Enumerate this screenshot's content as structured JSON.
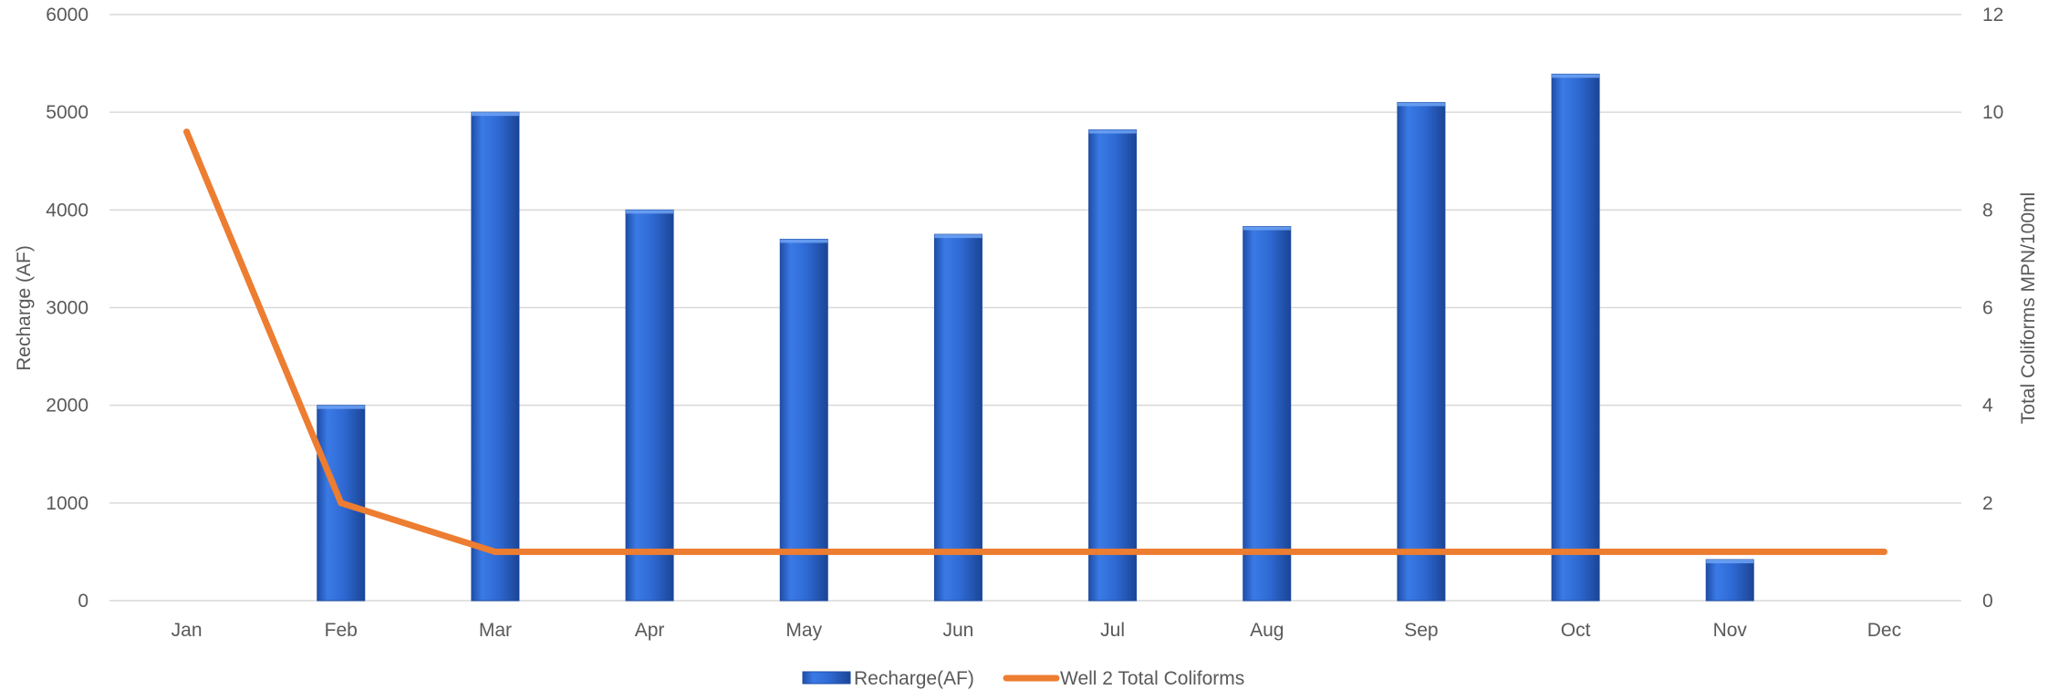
{
  "chart_data": {
    "type": "bar",
    "categories": [
      "Jan",
      "Feb",
      "Mar",
      "Apr",
      "May",
      "Jun",
      "Jul",
      "Aug",
      "Sep",
      "Oct",
      "Nov",
      "Dec"
    ],
    "series": [
      {
        "name": "Recharge(AF)",
        "kind": "bar",
        "axis": "left",
        "color": "#2e6bd6",
        "values": [
          0,
          2000,
          5000,
          4000,
          3700,
          3750,
          4820,
          3830,
          5100,
          5390,
          420,
          0
        ]
      },
      {
        "name": "Well 2 Total Coliforms",
        "kind": "line",
        "axis": "right",
        "color": "#ed7d31",
        "values": [
          9.6,
          2,
          1,
          1,
          1,
          1,
          1,
          1,
          1,
          1,
          1,
          1
        ]
      }
    ],
    "y_left": {
      "label": "Recharge (AF)",
      "ticks": [
        "0",
        "1000",
        "2000",
        "3000",
        "4000",
        "5000",
        "6000"
      ],
      "range": [
        0,
        6000
      ]
    },
    "y_right": {
      "label": "Total Coliforms MPN/100ml",
      "ticks": [
        "0",
        "2",
        "4",
        "6",
        "8",
        "10",
        "12"
      ],
      "range": [
        0,
        12
      ]
    },
    "grid": true,
    "legend_position": "bottom",
    "title": ""
  }
}
